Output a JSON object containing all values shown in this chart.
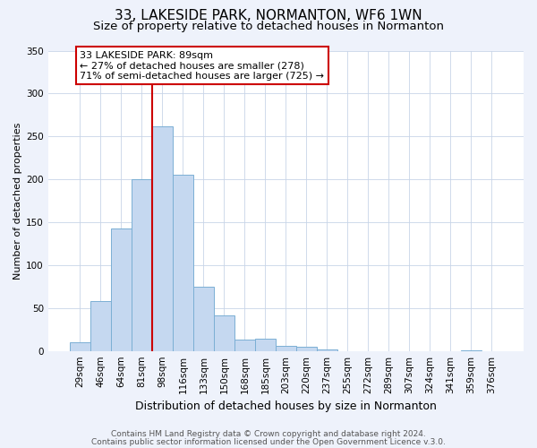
{
  "title": "33, LAKESIDE PARK, NORMANTON, WF6 1WN",
  "subtitle": "Size of property relative to detached houses in Normanton",
  "xlabel": "Distribution of detached houses by size in Normanton",
  "ylabel": "Number of detached properties",
  "bar_labels": [
    "29sqm",
    "46sqm",
    "64sqm",
    "81sqm",
    "98sqm",
    "116sqm",
    "133sqm",
    "150sqm",
    "168sqm",
    "185sqm",
    "203sqm",
    "220sqm",
    "237sqm",
    "255sqm",
    "272sqm",
    "289sqm",
    "307sqm",
    "324sqm",
    "341sqm",
    "359sqm",
    "376sqm"
  ],
  "bar_values": [
    10,
    58,
    143,
    200,
    262,
    205,
    75,
    41,
    13,
    14,
    6,
    5,
    2,
    0,
    0,
    0,
    0,
    0,
    0,
    1,
    0
  ],
  "bar_color": "#c5d8f0",
  "bar_edge_color": "#7bafd4",
  "ylim": [
    0,
    350
  ],
  "yticks": [
    0,
    50,
    100,
    150,
    200,
    250,
    300,
    350
  ],
  "vline_x_index": 4,
  "vline_color": "#cc0000",
  "annotation_title": "33 LAKESIDE PARK: 89sqm",
  "annotation_line1": "← 27% of detached houses are smaller (278)",
  "annotation_line2": "71% of semi-detached houses are larger (725) →",
  "annotation_box_color": "#ffffff",
  "annotation_box_edge": "#cc0000",
  "footer1": "Contains HM Land Registry data © Crown copyright and database right 2024.",
  "footer2": "Contains public sector information licensed under the Open Government Licence v.3.0.",
  "bg_color": "#eef2fb",
  "plot_bg_color": "#ffffff",
  "title_fontsize": 11,
  "subtitle_fontsize": 9.5,
  "xlabel_fontsize": 9,
  "ylabel_fontsize": 8,
  "tick_fontsize": 7.5,
  "annotation_fontsize": 8,
  "footer_fontsize": 6.5
}
